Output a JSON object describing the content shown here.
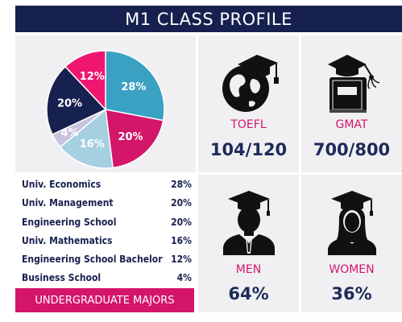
{
  "header": {
    "title": "M1 CLASS PROFILE"
  },
  "chart_data": {
    "type": "pie",
    "slices": [
      {
        "label": "Univ. Economics",
        "value": 28,
        "color": "#3aa1c3"
      },
      {
        "label": "Univ. Management",
        "value": 20,
        "color": "#d4166a"
      },
      {
        "label": "Univ. Mathematics",
        "value": 16,
        "color": "#a6cfe0"
      },
      {
        "label": "Business School",
        "value": 4,
        "color": "#c9c3de"
      },
      {
        "label": "Engineering School",
        "value": 20,
        "color": "#16214f"
      },
      {
        "label": "Engineering School Bachelor",
        "value": 12,
        "color": "#f0166f"
      }
    ],
    "slice_labels": [
      "28%",
      "20%",
      "16%",
      "4%",
      "20%",
      "12%"
    ]
  },
  "legend": [
    {
      "label": "Univ. Economics",
      "value": "28%"
    },
    {
      "label": "Univ. Management",
      "value": "20%"
    },
    {
      "label": "Engineering School",
      "value": "20%"
    },
    {
      "label": "Univ. Mathematics",
      "value": "16%"
    },
    {
      "label": "Engineering School Bachelor",
      "value": "12%"
    },
    {
      "label": "Business School",
      "value": "4%"
    }
  ],
  "majors_caption": "UNDERGRADUATE MAJORS",
  "stats": {
    "toefl": {
      "label": "TOEFL",
      "value": "104/120",
      "icon": "globe-graduation-cap-icon"
    },
    "gmat": {
      "label": "GMAT",
      "value": "700/800",
      "icon": "book-graduation-cap-icon"
    },
    "men": {
      "label": "MEN",
      "value": "64%",
      "icon": "male-graduate-icon"
    },
    "women": {
      "label": "WOMEN",
      "value": "36%",
      "icon": "female-graduate-icon"
    }
  }
}
